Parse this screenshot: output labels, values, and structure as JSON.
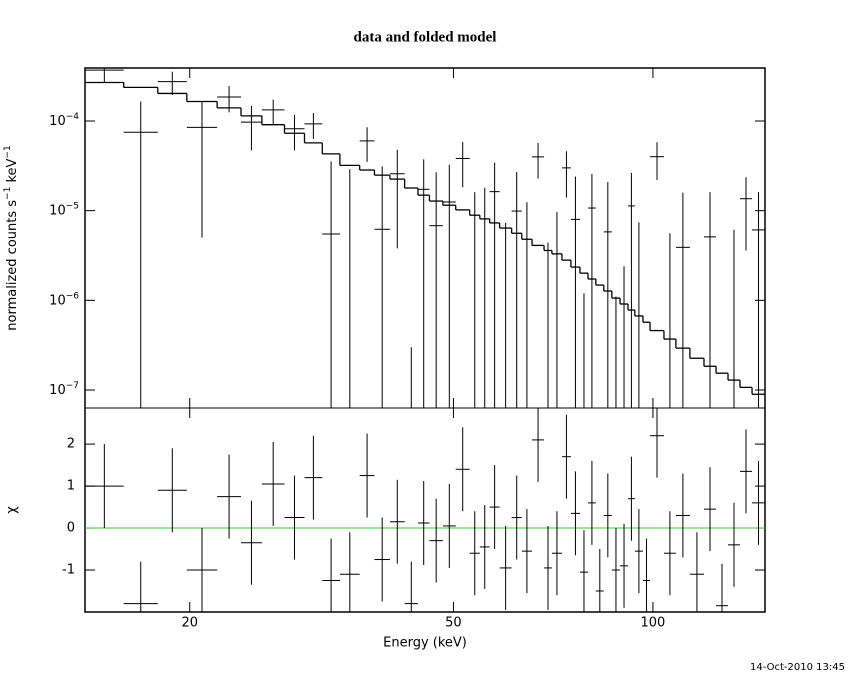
{
  "chart_data": {
    "type": "spectrum",
    "title": "data and folded model",
    "x_label": "Energy (keV)",
    "timestamp": "14-Oct-2010 13:45",
    "xscale": "log",
    "xlim": [
      13.9,
      147.6
    ],
    "xticks": [
      20,
      50,
      100
    ],
    "bins": [
      13.9,
      15.9,
      17.9,
      19.8,
      22.0,
      23.9,
      25.7,
      27.8,
      29.8,
      31.7,
      33.7,
      36.1,
      38.0,
      40.1,
      42.2,
      44.2,
      46.0,
      48.2,
      50.4,
      52.9,
      54.8,
      56.7,
      58.7,
      61.2,
      63.4,
      65.7,
      68.5,
      70.4,
      72.9,
      75.2,
      77.6,
      79.8,
      82.0,
      84.3,
      86.7,
      89.2,
      91.7,
      93.9,
      96.6,
      99.0,
      103.9,
      108.3,
      113.7,
      119.4,
      124.5,
      129.8,
      135.3,
      141.1,
      147.6
    ],
    "top": {
      "y_label": "normalized counts s−1 keV−1",
      "yscale": "log",
      "ylim": [
        6.3e-08,
        0.00039
      ],
      "yticks": [
        {
          "value": 1e-07,
          "label": "10−7"
        },
        {
          "value": 1e-06,
          "label": "10−6"
        },
        {
          "value": 1e-05,
          "label": "10−5"
        },
        {
          "value": 0.0001,
          "label": "10−4"
        }
      ],
      "data_color": "#000000",
      "model_color": "#000000",
      "values": [
        0.000369,
        7.5e-05,
        0.000275,
        8.5e-05,
        0.000185,
        9.7e-05,
        0.000133,
        8.2e-05,
        9.3e-05,
        5.5e-06,
        -1e-06,
        6e-05,
        6.2e-06,
        2.58e-05,
        -2.17e-05,
        1.73e-05,
        6.8e-06,
        1.25e-05,
        3.82e-05,
        -1.9e-06,
        0,
        1.63e-05,
        -1.07e-05,
        9.9e-06,
        -4.6e-06,
        3.98e-05,
        -1.26e-05,
        -6.3e-06,
        3e-05,
        8e-06,
        -1.48e-05,
        1.07e-05,
        -2.1e-05,
        5.8e-06,
        -1.39e-05,
        -1.26e-05,
        1.13e-05,
        -7.6e-06,
        -1.82e-05,
        4e-05,
        -7.4e-06,
        3.9e-06,
        -1.19e-05,
        5.1e-06,
        -1.83e-05,
        -3.9e-06,
        1.36e-05,
        6.1e-06
      ],
      "errors": [
        0.0001,
        9e-05,
        8e-05,
        8e-05,
        6e-05,
        5e-05,
        4e-05,
        3.5e-05,
        3e-05,
        3e-05,
        3e-05,
        2.5e-05,
        2.5e-05,
        2.2e-05,
        2.2e-05,
        2e-05,
        2e-05,
        2e-05,
        2e-05,
        1.8e-05,
        1.8e-05,
        1.8e-05,
        1.8e-05,
        1.7e-05,
        1.7e-05,
        1.7e-05,
        1.7e-05,
        1.6e-05,
        1.6e-05,
        1.6e-05,
        1.6e-05,
        1.5e-05,
        1.5e-05,
        1.5e-05,
        1.5e-05,
        1.5e-05,
        1.5e-05,
        1.5e-05,
        1.5e-05,
        1.8e-05,
        1.3e-05,
        1.2e-05,
        1.1e-05,
        1.1e-05,
        1e-05,
        1e-05,
        1e-05,
        1e-05
      ],
      "model": [
        0.000269,
        0.000237,
        0.000203,
        0.000165,
        0.00014,
        0.000114,
        9.1e-05,
        7.3e-05,
        5.7e-05,
        4.3e-05,
        3.2e-05,
        2.84e-05,
        2.49e-05,
        2.25e-05,
        1.79e-05,
        1.49e-05,
        1.28e-05,
        1.15e-05,
        1.02e-05,
        8.9e-06,
        8.1e-06,
        7.3e-06,
        6.4e-06,
        5.6e-06,
        4.8e-06,
        4.1e-06,
        3.6e-06,
        3.3e-06,
        2.81e-06,
        2.35e-06,
        2.01e-06,
        1.73e-06,
        1.48e-06,
        1.27e-06,
        1.06e-06,
        9.1e-07,
        7.8e-07,
        6.7e-07,
        5.7e-07,
        4.6e-07,
        3.7e-07,
        2.93e-07,
        2.26e-07,
        1.84e-07,
        1.54e-07,
        1.29e-07,
        1.07e-07,
        8.97e-08
      ]
    },
    "bottom": {
      "y_label": "χ",
      "ylim": [
        -2,
        2.86
      ],
      "yticks": [
        -1,
        0,
        1,
        2
      ],
      "data_color": "#000000",
      "reference_line": 0,
      "reference_color": "#33cc33",
      "values": [
        1.0,
        -1.8,
        0.9,
        -1.0,
        0.75,
        -0.35,
        1.05,
        0.25,
        1.2,
        -1.25,
        -1.1,
        1.25,
        -0.75,
        0.15,
        -1.8,
        0.12,
        -0.3,
        0.05,
        1.4,
        -0.6,
        -0.45,
        0.5,
        -0.95,
        0.25,
        -0.55,
        2.1,
        -0.95,
        -0.6,
        1.7,
        0.35,
        -1.05,
        0.6,
        -1.5,
        0.3,
        -1.0,
        -0.9,
        0.7,
        -0.55,
        -1.25,
        2.2,
        -0.6,
        0.3,
        -1.1,
        0.45,
        -1.85,
        -0.4,
        1.35,
        0.6
      ],
      "errors": [
        1,
        1,
        1,
        1,
        1,
        1,
        1,
        1,
        1,
        1,
        1,
        1,
        1,
        1,
        1,
        1,
        1,
        1,
        1,
        1,
        1,
        1,
        1,
        1,
        1,
        1,
        1,
        1,
        1,
        1,
        1,
        1,
        1,
        1,
        1,
        1,
        1,
        1,
        1,
        1,
        1,
        1,
        1,
        1,
        1,
        1,
        1,
        1
      ]
    }
  }
}
